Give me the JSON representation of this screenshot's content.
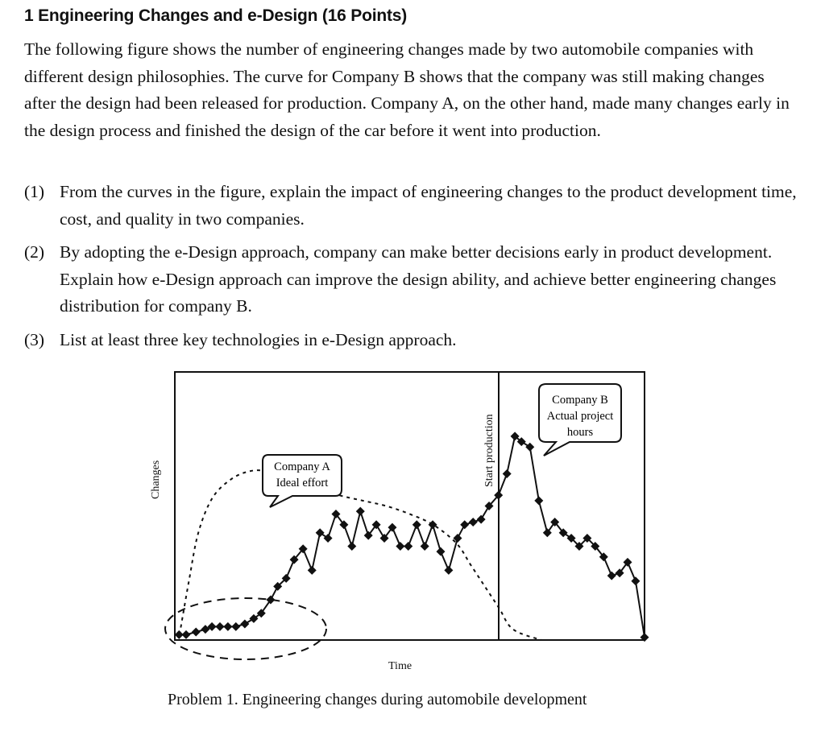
{
  "document": {
    "heading": "1 Engineering Changes and e-Design (16 Points)",
    "intro": "The following figure shows the number of engineering changes made by two automobile companies with different design philosophies. The curve for Company B shows that the company was still making changes after the design had been released for production. Company A, on the other hand, made many changes early in the design process and finished the design of the car before it went into production.",
    "questions": [
      {
        "num": "(1)",
        "text": "From the curves in the figure, explain the impact of engineering changes to the product development time, cost, and quality in two companies."
      },
      {
        "num": "(2)",
        "text": "By adopting the e-Design approach, company can make better decisions early in product development. Explain how e-Design approach can improve the design ability, and achieve better engineering changes distribution for company B."
      },
      {
        "num": "(3)",
        "text": "List at least three key technologies in e-Design approach."
      }
    ],
    "caption": "Problem 1. Engineering changes during automobile development"
  },
  "chart_data": {
    "type": "line",
    "title": "Problem 1. Engineering changes during automobile development",
    "xlabel": "Time",
    "ylabel": "Changes",
    "xlim": [
      0,
      100
    ],
    "ylim": [
      0,
      100
    ],
    "grid": false,
    "legend": "none (callout labels)",
    "annotations": [
      {
        "text": "Company A\nIdeal effort",
        "target": "series.0",
        "type": "callout"
      },
      {
        "text": "Company B\nActual project\nhours",
        "target": "series.1",
        "type": "callout"
      },
      {
        "text": "Start production",
        "type": "vertical-line",
        "x": 68.8
      },
      {
        "text": "",
        "type": "dashed-ellipse",
        "note": "circles early low-change region of Company B"
      }
    ],
    "series": [
      {
        "name": "Company A Ideal effort",
        "style": "dotted",
        "x": [
          1,
          3,
          5,
          8,
          12,
          16,
          20,
          25,
          30,
          35,
          40,
          45,
          50,
          55,
          60,
          63,
          66,
          69,
          72,
          78
        ],
        "values": [
          2,
          22,
          40,
          53,
          60,
          63,
          63,
          61,
          57,
          54,
          52,
          50,
          47,
          43,
          36,
          28,
          20,
          12,
          4,
          0
        ]
      },
      {
        "name": "Company B Actual project hours",
        "style": "solid-diamond-markers",
        "x": [
          0.9,
          2.4,
          4.5,
          6.5,
          7.9,
          9.6,
          11.3,
          13.0,
          14.9,
          16.8,
          18.4,
          20.4,
          21.9,
          23.7,
          25.4,
          27.3,
          29.2,
          30.9,
          32.6,
          34.3,
          36.0,
          37.7,
          39.5,
          41.2,
          42.9,
          44.6,
          46.3,
          48.0,
          49.7,
          51.5,
          53.2,
          54.9,
          56.6,
          58.3,
          60.2,
          61.7,
          63.5,
          65.2,
          66.9,
          68.9,
          70.7,
          72.4,
          73.8,
          75.6,
          77.5,
          79.3,
          80.9,
          82.7,
          84.4,
          86.1,
          87.8,
          89.5,
          91.3,
          93.0,
          94.7,
          96.4,
          98.1,
          100.0
        ],
        "values": [
          2,
          2,
          3,
          4,
          5,
          5,
          5,
          5,
          6,
          8,
          10,
          15,
          20,
          23,
          30,
          34,
          26,
          40,
          38,
          47,
          43,
          35,
          48,
          39,
          43,
          38,
          42,
          35,
          35,
          43,
          35,
          43,
          33,
          26,
          38,
          43,
          44,
          45,
          50,
          54,
          62,
          76,
          74,
          72,
          52,
          40,
          44,
          40,
          38,
          35,
          38,
          35,
          31,
          24,
          25,
          29,
          22,
          1
        ]
      }
    ]
  }
}
